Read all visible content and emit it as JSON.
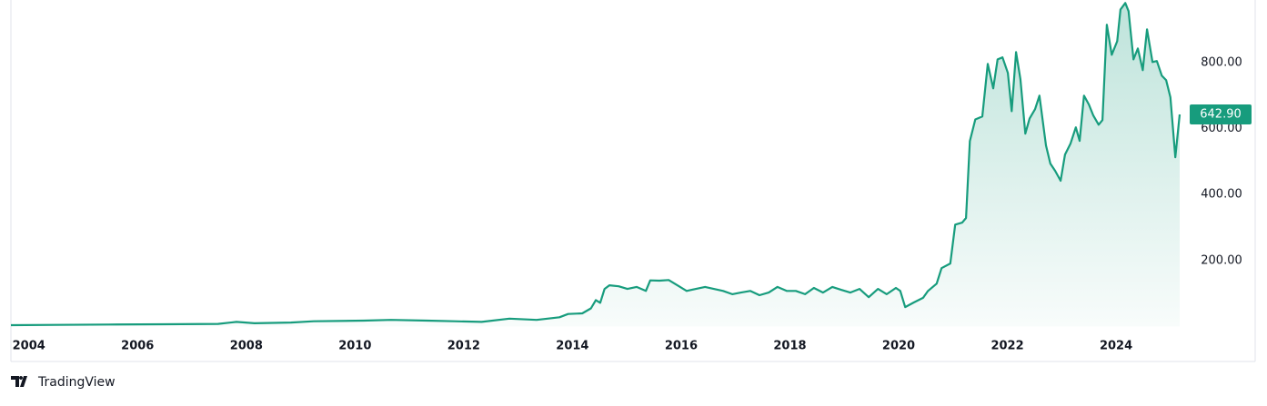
{
  "chart_data": {
    "type": "area",
    "x": [
      2003.67,
      2004.47,
      2005.47,
      2006.48,
      2007.48,
      2007.82,
      2008.15,
      2008.82,
      2009.24,
      2010.16,
      2010.66,
      2011.33,
      2011.83,
      2012.33,
      2012.84,
      2013.34,
      2013.76,
      2013.92,
      2014.18,
      2014.34,
      2014.43,
      2014.51,
      2014.59,
      2014.68,
      2014.85,
      2015.01,
      2015.18,
      2015.35,
      2015.43,
      2015.6,
      2015.77,
      2015.93,
      2016.1,
      2016.27,
      2016.44,
      2016.6,
      2016.77,
      2016.94,
      2017.1,
      2017.27,
      2017.44,
      2017.61,
      2017.77,
      2017.94,
      2018.11,
      2018.28,
      2018.44,
      2018.61,
      2018.78,
      2018.95,
      2019.11,
      2019.28,
      2019.45,
      2019.62,
      2019.78,
      2019.95,
      2020.03,
      2020.12,
      2020.28,
      2020.45,
      2020.54,
      2020.7,
      2020.79,
      2020.95,
      2021.04,
      2021.17,
      2021.24,
      2021.31,
      2021.41,
      2021.54,
      2021.64,
      2021.74,
      2021.82,
      2021.91,
      2022.01,
      2022.08,
      2022.16,
      2022.24,
      2022.33,
      2022.41,
      2022.51,
      2022.59,
      2022.71,
      2022.79,
      2022.88,
      2022.98,
      2023.06,
      2023.16,
      2023.26,
      2023.33,
      2023.41,
      2023.5,
      2023.58,
      2023.68,
      2023.75,
      2023.83,
      2023.92,
      2024.02,
      2024.08,
      2024.17,
      2024.23,
      2024.32,
      2024.4,
      2024.49,
      2024.57,
      2024.67,
      2024.75,
      2024.84,
      2024.92,
      2025.0,
      2025.09,
      2025.17
    ],
    "values": [
      4,
      5,
      6,
      7,
      8,
      14,
      10,
      12,
      16,
      18,
      20,
      18,
      16,
      14,
      24,
      20,
      28,
      38,
      40,
      55,
      80,
      72,
      114,
      125,
      122,
      114,
      120,
      108,
      140,
      139,
      141,
      125,
      108,
      114,
      120,
      114,
      108,
      98,
      103,
      108,
      95,
      103,
      120,
      108,
      108,
      98,
      117,
      103,
      120,
      111,
      103,
      114,
      89,
      114,
      98,
      117,
      108,
      59,
      73,
      87,
      108,
      130,
      177,
      191,
      309,
      315,
      329,
      562,
      628,
      637,
      796,
      722,
      810,
      816,
      769,
      653,
      832,
      750,
      585,
      631,
      659,
      700,
      549,
      494,
      472,
      442,
      521,
      554,
      604,
      563,
      700,
      673,
      640,
      612,
      626,
      915,
      824,
      865,
      961,
      981,
      956,
      810,
      843,
      777,
      901,
      802,
      805,
      761,
      747,
      695,
      513,
      642.9
    ],
    "color": "#179c7d",
    "xlim": [
      2003.67,
      2025.17
    ],
    "xticks": [
      2004,
      2006,
      2008,
      2010,
      2012,
      2014,
      2016,
      2018,
      2020,
      2022,
      2024
    ],
    "ylim": [
      0,
      990
    ],
    "yticks": [
      {
        "value": 200,
        "label": "200.00"
      },
      {
        "value": 400,
        "label": "400.00"
      },
      {
        "value": 600,
        "label": "600.00"
      },
      {
        "value": 800,
        "label": "800.00"
      }
    ],
    "last_price": {
      "value": 642.9,
      "label": "642.90"
    },
    "watermark": "TradingView"
  }
}
